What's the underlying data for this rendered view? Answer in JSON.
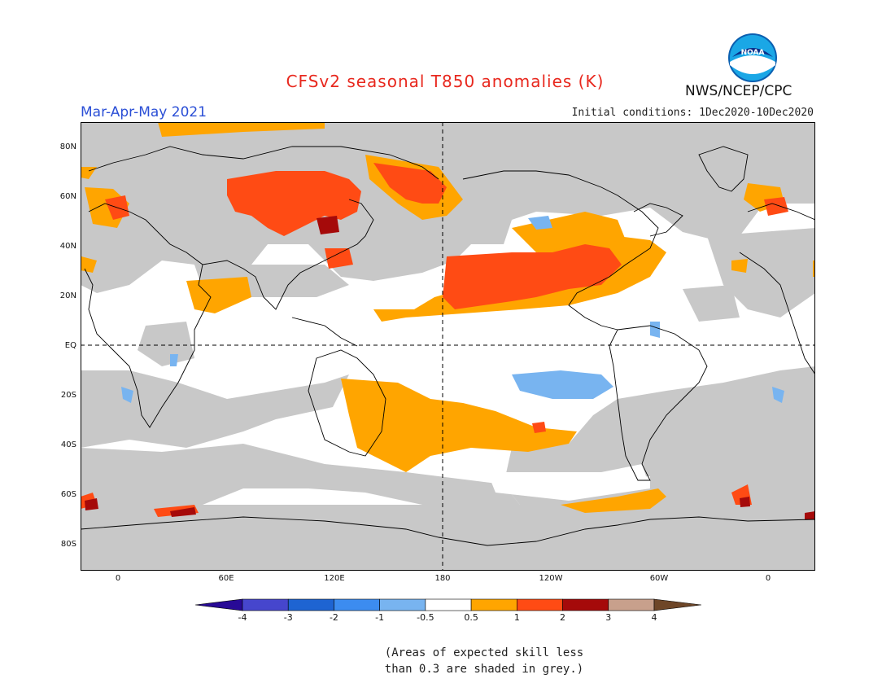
{
  "title": "CFSv2 seasonal T850 anomalies (K)",
  "period": "Mar-Apr-May 2021",
  "initial_conditions": "Initial conditions: 1Dec2020-10Dec2020",
  "agency": "NWS/NCEP/CPC",
  "logo_text": "NOAA",
  "note_line1": "(Areas of expected skill less",
  "note_line2": "than 0.3 are shaded in grey.)",
  "map": {
    "lat_labels": [
      "80N",
      "60N",
      "40N",
      "20N",
      "EQ",
      "20S",
      "40S",
      "60S",
      "80S"
    ],
    "lon_labels": [
      "0",
      "60E",
      "120E",
      "180",
      "120W",
      "60W",
      "0"
    ],
    "colors": {
      "grey_low_skill": "#c8c8c8",
      "p0_5_to_1": "#ffa500",
      "p1_to_2": "#ff4b14",
      "p2_to_3": "#a50a0a",
      "m0_5_to_1": "#78b4f0"
    }
  },
  "colorbar": {
    "labels": [
      "-4",
      "-3",
      "-2",
      "-1",
      "-0.5",
      "0.5",
      "1",
      "2",
      "3",
      "4"
    ],
    "colors": [
      "#280a96",
      "#4646cd",
      "#1e64d2",
      "#3c8cf0",
      "#78b4f0",
      "#ffffff",
      "#ffa500",
      "#ff4b14",
      "#a50a0a",
      "#c8a08c",
      "#6e4628"
    ]
  }
}
